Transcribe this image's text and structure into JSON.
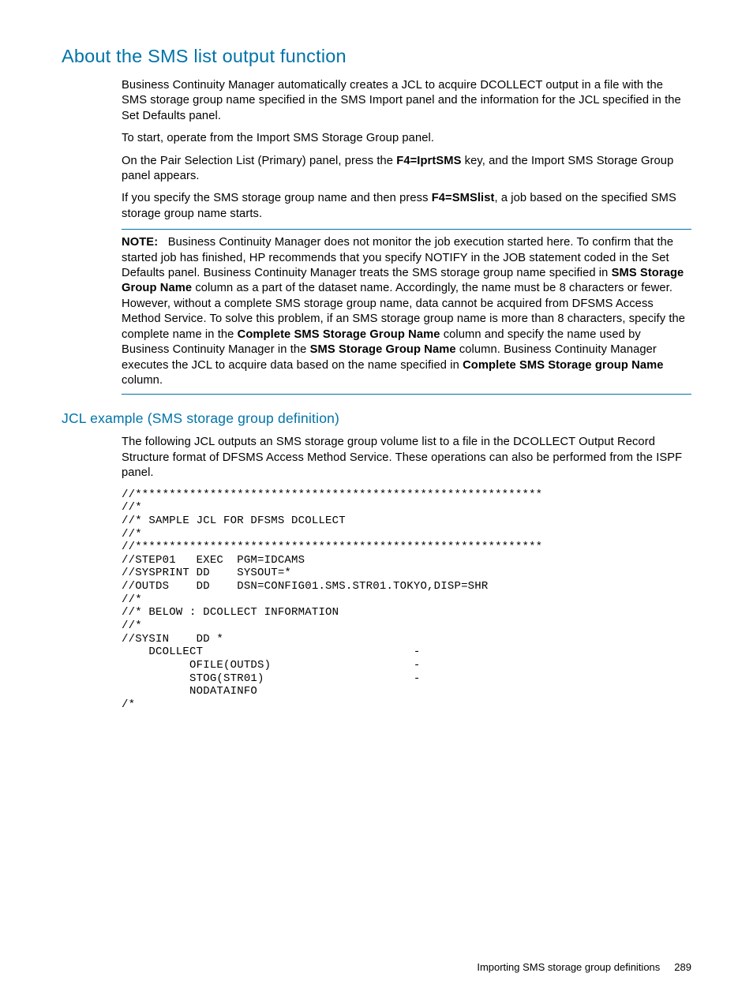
{
  "heading1": "About the SMS list output function",
  "para1": "Business Continuity Manager automatically creates a JCL to acquire DCOLLECT output in a file with the SMS storage group name specified in the SMS Import panel and the information for the JCL specified in the Set Defaults panel.",
  "para2": "To start, operate from the Import SMS Storage Group panel.",
  "para3a": "On the Pair Selection List (Primary) panel, press the ",
  "para3b": "F4=IprtSMS",
  "para3c": " key, and the Import SMS Storage Group panel appears.",
  "para4a": "If you specify the SMS storage group name and then press ",
  "para4b": "F4=SMSlist",
  "para4c": ", a job based on the specified SMS storage group name starts.",
  "noteLabel": "NOTE:",
  "note_a": "Business Continuity Manager does not monitor the job execution started here. To confirm that the started job has finished, HP recommends that you specify NOTIFY in the JOB statement coded in the Set Defaults panel. Business Continuity Manager treats the SMS storage group name specified in ",
  "note_b": "SMS Storage Group Name",
  "note_c": " column as a part of the dataset name. Accordingly, the name must be 8 characters or fewer. However, without a complete SMS storage group name, data cannot be acquired from DFSMS Access Method Service. To solve this problem, if an SMS storage group name is more than 8 characters, specify the complete name in the ",
  "note_d": "Complete SMS Storage Group Name",
  "note_e": " column and specify the name used by Business Continuity Manager in the ",
  "note_f": "SMS Storage Group Name",
  "note_g": " column. Business Continuity Manager executes the JCL to acquire data based on the name specified in ",
  "note_h": "Complete SMS Storage group Name",
  "note_i": " column.",
  "heading2": "JCL example (SMS storage group definition)",
  "para5": "The following JCL outputs an SMS storage group volume list to a file in the DCOLLECT Output Record Structure format of DFSMS Access Method Service. These operations can also be performed from the ISPF panel.",
  "code": "//************************************************************\n//*\n//* SAMPLE JCL FOR DFSMS DCOLLECT\n//*\n//************************************************************\n//STEP01   EXEC  PGM=IDCAMS\n//SYSPRINT DD    SYSOUT=*\n//OUTDS    DD    DSN=CONFIG01.SMS.STR01.TOKYO,DISP=SHR\n//*\n//* BELOW : DCOLLECT INFORMATION\n//*\n//SYSIN    DD *\n    DCOLLECT                               -\n          OFILE(OUTDS)                     -\n          STOG(STR01)                      -\n          NODATAINFO\n/*",
  "footerText": "Importing SMS storage group definitions",
  "pageNumber": "289"
}
